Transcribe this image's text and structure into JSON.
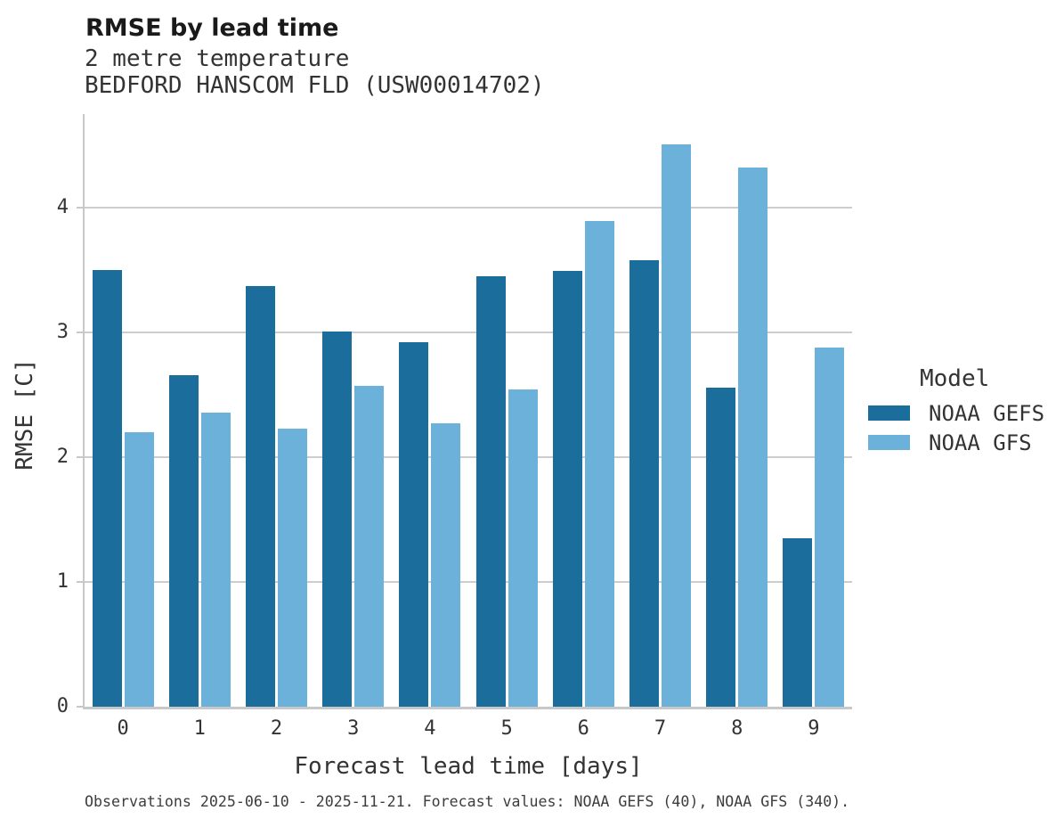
{
  "header": {
    "title": "RMSE by lead time",
    "subtitle_line1": "2 metre temperature",
    "subtitle_line2": "BEDFORD HANSCOM FLD (USW00014702)"
  },
  "axes": {
    "xlabel": "Forecast lead time [days]",
    "ylabel": "RMSE [C]"
  },
  "legend": {
    "title": "Model",
    "items": [
      {
        "label": "NOAA GEFS",
        "color": "#1b6e9c"
      },
      {
        "label": "NOAA GFS",
        "color": "#6bb1da"
      }
    ]
  },
  "footer": {
    "caption": "Observations 2025-06-10 - 2025-11-21. Forecast values: NOAA GEFS (40), NOAA GFS (340)."
  },
  "colors": {
    "gefs_bar": "#1b6e9c",
    "gfs_bar": "#6bb1da",
    "gridline": "#cdcdcd",
    "axis_spine": "#c8c8c8",
    "title_text": "#1a1a1a",
    "body_text": "#333333"
  },
  "chart_data": {
    "type": "bar",
    "title": "RMSE by lead time",
    "subtitle": [
      "2 metre temperature",
      "BEDFORD HANSCOM FLD (USW00014702)"
    ],
    "xlabel": "Forecast lead time [days]",
    "ylabel": "RMSE [C]",
    "categories": [
      "0",
      "1",
      "2",
      "3",
      "4",
      "5",
      "6",
      "7",
      "8",
      "9"
    ],
    "series": [
      {
        "name": "NOAA GEFS",
        "color": "#1b6e9c",
        "values": [
          3.5,
          2.66,
          3.37,
          3.01,
          2.92,
          3.45,
          3.49,
          3.58,
          2.56,
          1.35
        ]
      },
      {
        "name": "NOAA GFS",
        "color": "#6bb1da",
        "values": [
          2.2,
          2.36,
          2.23,
          2.57,
          2.27,
          2.54,
          3.89,
          4.51,
          4.32,
          2.88
        ]
      }
    ],
    "ylim": [
      0,
      4.75
    ],
    "yticks": [
      0,
      1,
      2,
      3,
      4
    ],
    "grid": true,
    "legend_title": "Model",
    "legend_position": "right"
  }
}
